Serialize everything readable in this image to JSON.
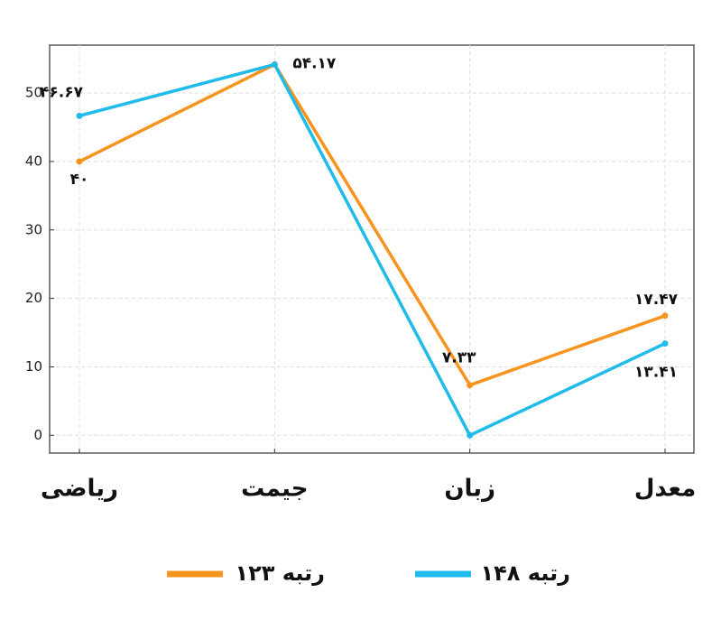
{
  "chart_data": {
    "type": "line",
    "categories": [
      "ریاضی",
      "جیمت",
      "زبان",
      "معدل"
    ],
    "series": [
      {
        "name": "رتبه ۱۲۳",
        "color": "#f7941d",
        "values": [
          40,
          54.17,
          7.33,
          17.47
        ],
        "value_labels": [
          "۴۰",
          null,
          "۷.۳۳",
          "۱۷.۴۷"
        ]
      },
      {
        "name": "رتبه ۱۴۸",
        "color": "#1fbbea",
        "values": [
          46.67,
          54.17,
          0,
          13.41
        ],
        "value_labels": [
          "۴۶.۶۷",
          "۵۴.۱۷",
          null,
          "۱۳.۴۱"
        ]
      }
    ],
    "ylim": [
      -2.6,
      57
    ],
    "yticks": [
      0,
      10,
      20,
      30,
      40,
      50
    ],
    "grid": true
  }
}
